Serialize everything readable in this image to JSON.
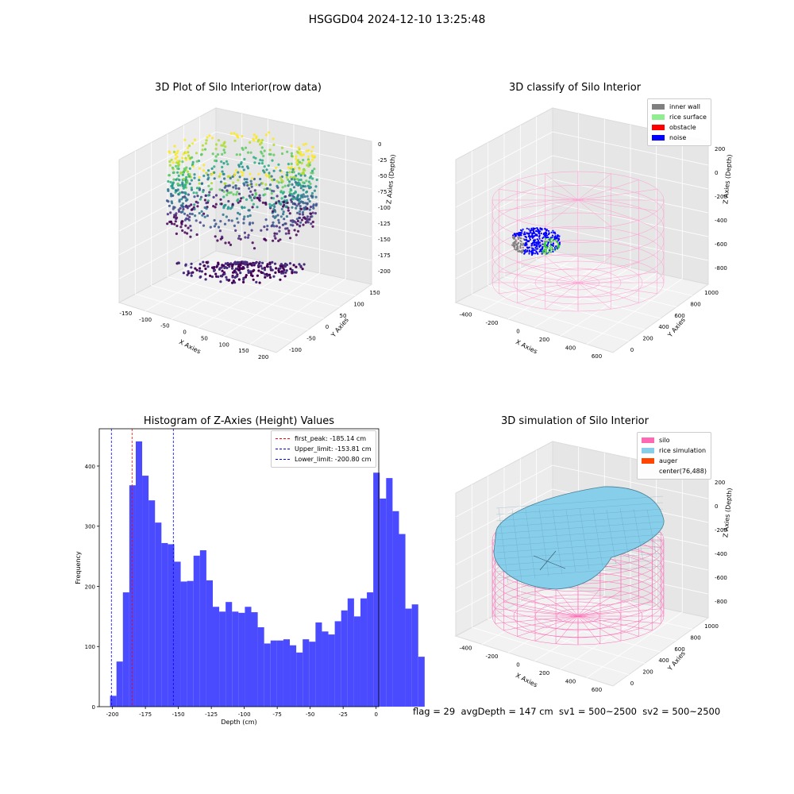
{
  "suptitle": "HSGGD04 2024-12-10 13:25:48",
  "footer": "flag = 29  avgDepth = 147 cm  sv1 = 500~2500  sv2 = 500~2500",
  "panel1": {
    "title": "3D Plot of Silo Interior(row data)",
    "xlabel": "X Axies",
    "ylabel": "Y Axies",
    "zlabel": "Z Axies (Depth)",
    "xticks": [
      "-150",
      "-100",
      "-50",
      "0",
      "50",
      "100",
      "150",
      "200"
    ],
    "yticks": [
      "-100",
      "-50",
      "0",
      "50",
      "100",
      "150"
    ],
    "zticks": [
      "0",
      "-25",
      "-50",
      "-75",
      "-100",
      "-125",
      "-150",
      "-175",
      "-200"
    ]
  },
  "panel2": {
    "title": "3D classify of Silo Interior",
    "xlabel": "X Axies",
    "ylabel": "Y Axies",
    "zlabel": "Z Axies (Depth)",
    "xticks": [
      "-400",
      "-200",
      "0",
      "200",
      "400",
      "600"
    ],
    "yticks": [
      "0",
      "200",
      "400",
      "600",
      "800",
      "1000"
    ],
    "zticks": [
      "200",
      "0",
      "-200",
      "-400",
      "-600",
      "-800"
    ],
    "legend": [
      {
        "label": "inner wall",
        "color": "#808080"
      },
      {
        "label": "rice surface",
        "color": "#90ee90"
      },
      {
        "label": "obstacle",
        "color": "#ff0000"
      },
      {
        "label": "noise",
        "color": "#0000ff"
      }
    ]
  },
  "panel4": {
    "title": "3D simulation of Silo Interior",
    "xlabel": "X Axies",
    "ylabel": "Y Axies",
    "zlabel": "Z Axies (Depth)",
    "xticks": [
      "-400",
      "-200",
      "0",
      "200",
      "400",
      "600"
    ],
    "yticks": [
      "0",
      "200",
      "400",
      "600",
      "800",
      "1000"
    ],
    "zticks": [
      "200",
      "0",
      "-200",
      "-400",
      "-600",
      "-800"
    ],
    "legend": [
      {
        "label": "silo",
        "color": "#ff69b4"
      },
      {
        "label": "rice simulation",
        "color": "#87ceeb"
      },
      {
        "label": "auger",
        "color": "#ff4500"
      },
      {
        "label": "center(76,488)",
        "color": ""
      }
    ]
  },
  "chart_data": {
    "type": "bar",
    "title": "Histogram of Z-Axies (Height) Values",
    "xlabel": "Depth (cm)",
    "ylabel": "Frequency",
    "xlim": [
      -210,
      2
    ],
    "ylim": [
      0,
      462
    ],
    "xticks": [
      -200,
      -175,
      -150,
      -125,
      -100,
      -75,
      -50,
      -25,
      0
    ],
    "yticks": [
      0,
      100,
      200,
      300,
      400
    ],
    "bin_start": -201.8,
    "bin_width": 4.87,
    "values": [
      18,
      75,
      190,
      368,
      441,
      384,
      343,
      306,
      272,
      270,
      241,
      208,
      209,
      251,
      260,
      210,
      166,
      158,
      174,
      158,
      156,
      166,
      157,
      132,
      105,
      110,
      110,
      112,
      102,
      90,
      112,
      108,
      140,
      125,
      120,
      142,
      160,
      180,
      150,
      180,
      190,
      389,
      346,
      380,
      325,
      287,
      163,
      170,
      83
    ],
    "lines": [
      {
        "label": "first_peak: -185.14 cm",
        "x": -185.14,
        "color": "#ff0000"
      },
      {
        "label": "Upper_limit: -153.81 cm",
        "x": -153.81,
        "color": "#0000ff"
      },
      {
        "label": "Lower_limit: -200.80 cm",
        "x": -200.8,
        "color": "#0000ff"
      }
    ],
    "bar_color": "#4a4aff"
  }
}
